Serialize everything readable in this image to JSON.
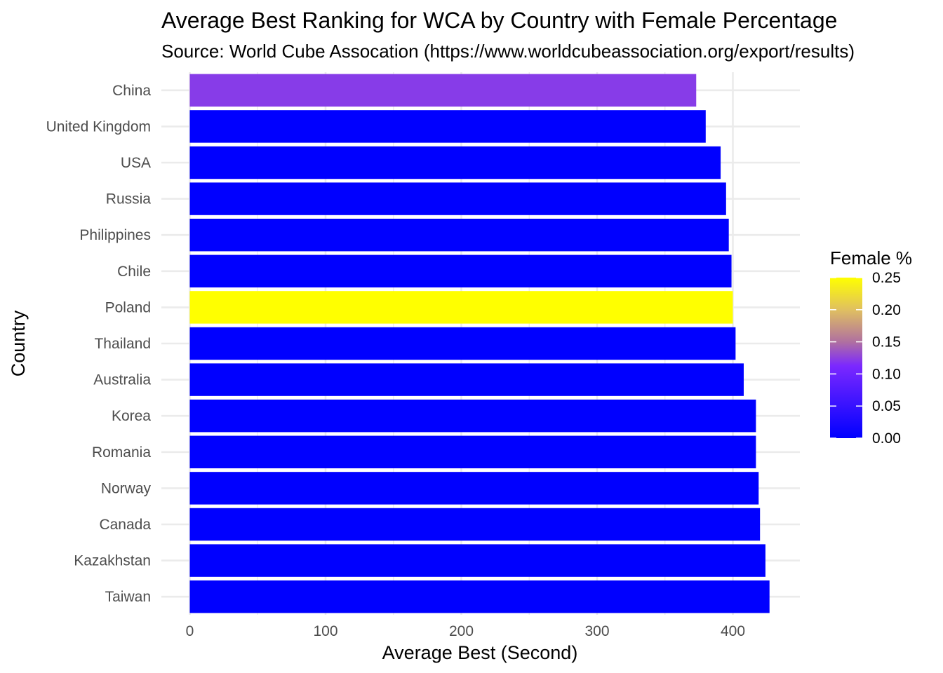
{
  "chart_data": {
    "type": "bar",
    "orientation": "horizontal",
    "title": "Average Best Ranking for WCA by Country with Female Percentage",
    "subtitle": "Source: World Cube Assocation (https://www.worldcubeassociation.org/export/results)",
    "xlabel": "Average Best (Second)",
    "ylabel": "Country",
    "xlim": [
      0,
      447
    ],
    "x_ticks": [
      0,
      100,
      200,
      300,
      400
    ],
    "x_tick_labels": [
      "0",
      "100",
      "200",
      "300",
      "400"
    ],
    "grid": true,
    "categories": [
      "China",
      "United Kingdom",
      "USA",
      "Russia",
      "Philippines",
      "Chile",
      "Poland",
      "Thailand",
      "Australia",
      "Korea",
      "Romania",
      "Norway",
      "Canada",
      "Kazakhstan",
      "Taiwan"
    ],
    "values": [
      373,
      380,
      391,
      395,
      397,
      399,
      400,
      402,
      408,
      417,
      417,
      419,
      420,
      424,
      427
    ],
    "fill_values": [
      0.125,
      0.0,
      0.0,
      0.0,
      0.0,
      0.0,
      0.25,
      0.0,
      0.0,
      0.0,
      0.0,
      0.0,
      0.0,
      0.0,
      0.0
    ],
    "legend": {
      "title": "Female %",
      "position": "right",
      "min": 0.0,
      "max": 0.25,
      "ticks": [
        0.0,
        0.05,
        0.1,
        0.15,
        0.2,
        0.25
      ],
      "tick_labels": [
        "0.00",
        "0.05",
        "0.10",
        "0.15",
        "0.20",
        "0.25"
      ],
      "colors": [
        "#0000ff",
        "#7b28ff",
        "#ffff00"
      ]
    }
  }
}
